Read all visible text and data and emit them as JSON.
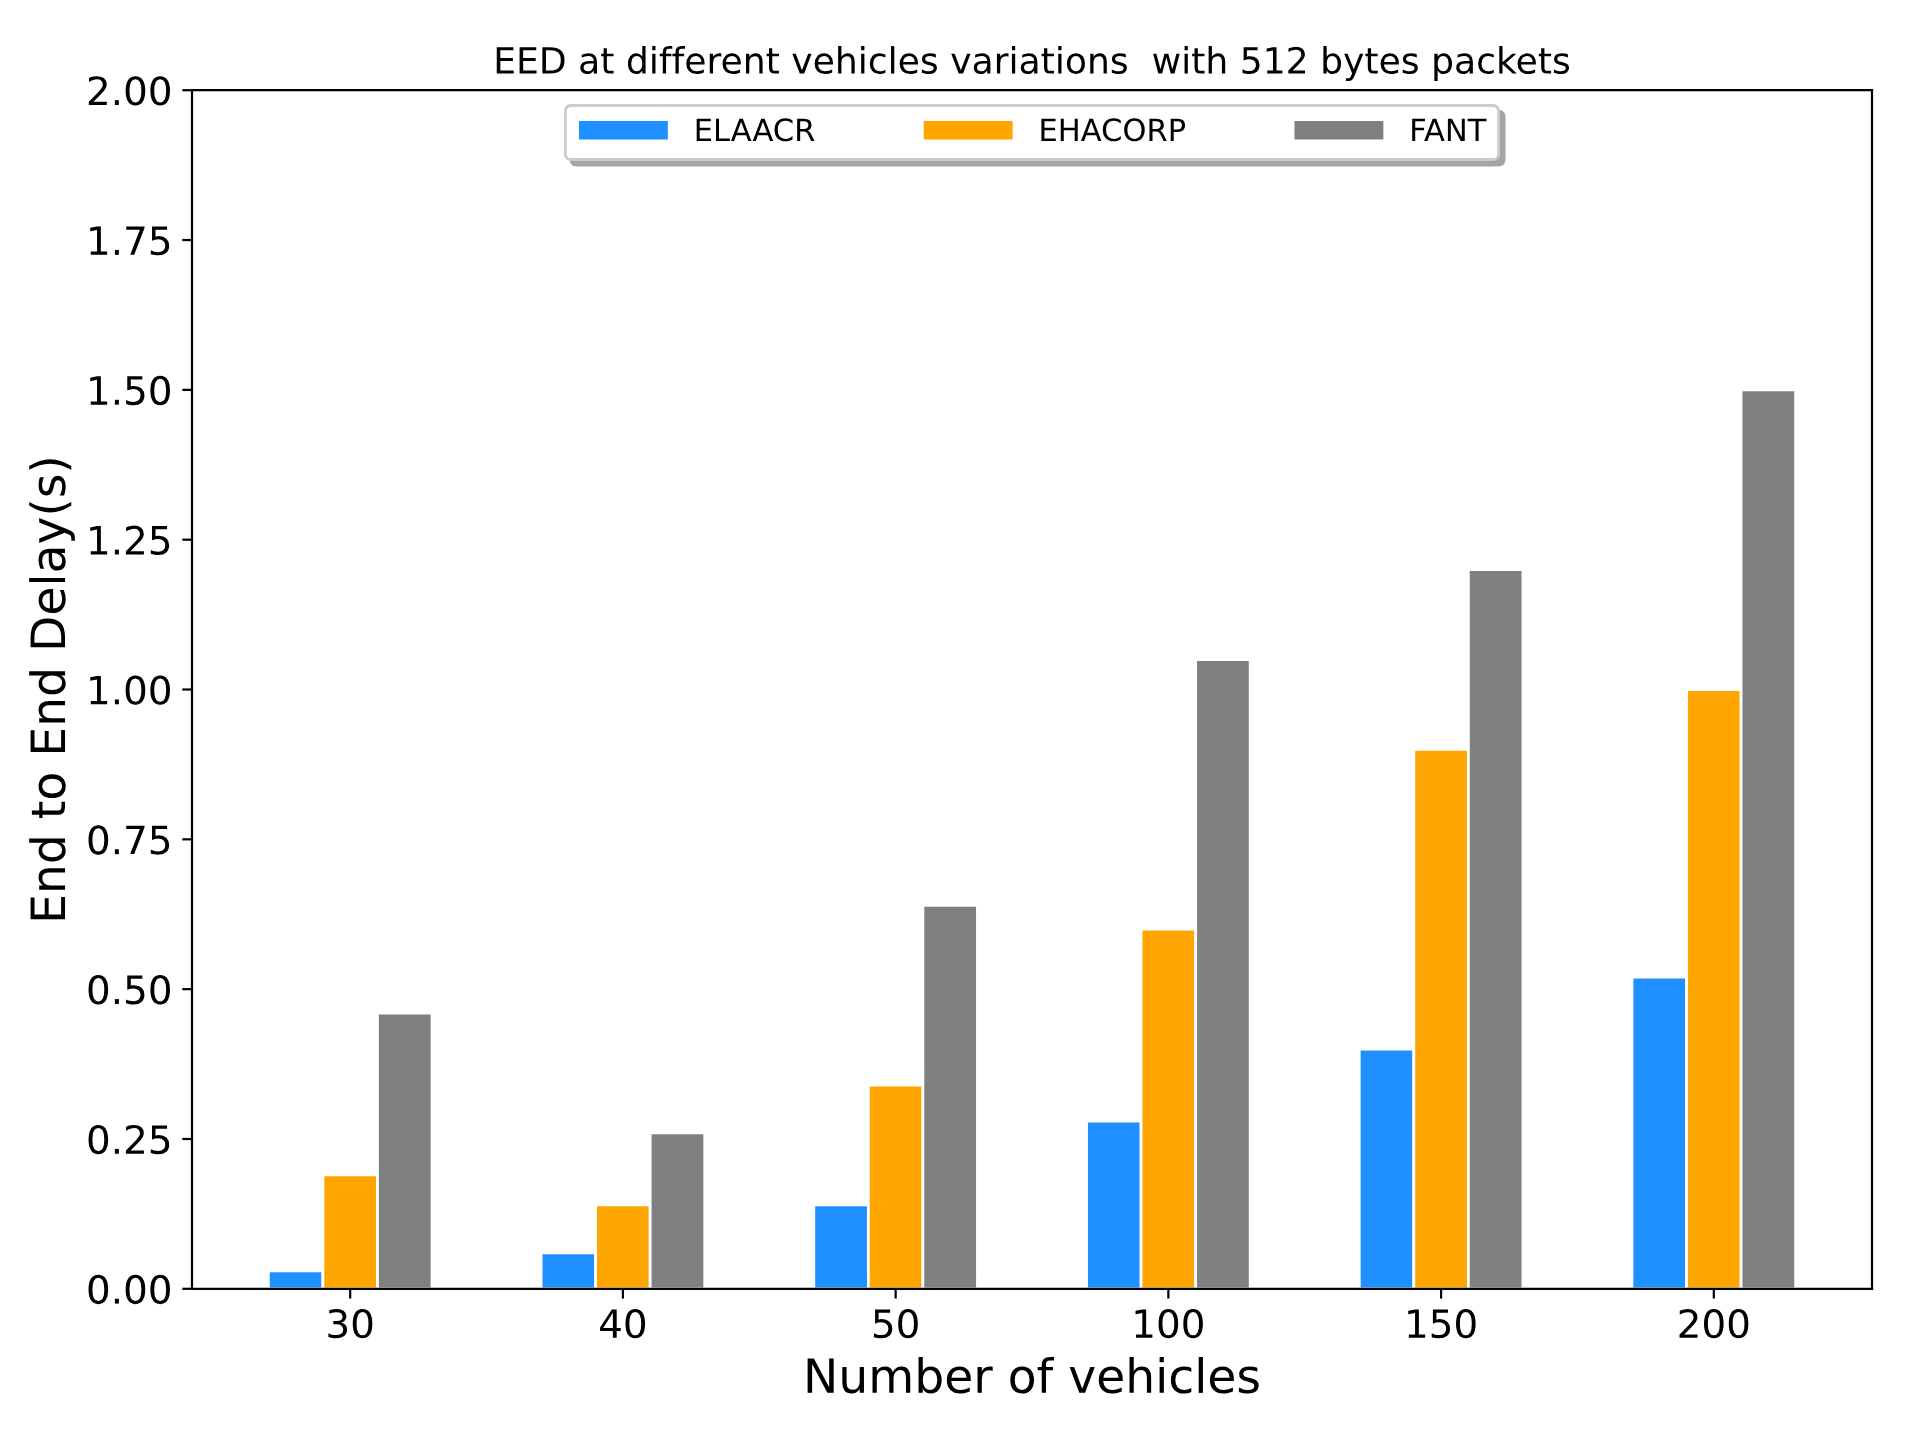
{
  "chart_data": {
    "type": "bar",
    "title": "EED at different vehicles variations  with 512 bytes packets",
    "xlabel": "Number of vehicles",
    "ylabel": "End to End Delay(s)",
    "categories": [
      "30",
      "40",
      "50",
      "100",
      "150",
      "200"
    ],
    "series": [
      {
        "name": "ELAACR",
        "color": "#1e90ff",
        "values": [
          0.03,
          0.06,
          0.14,
          0.28,
          0.4,
          0.52
        ]
      },
      {
        "name": "EHACORP",
        "color": "#ffa500",
        "values": [
          0.19,
          0.14,
          0.34,
          0.6,
          0.9,
          1.0
        ]
      },
      {
        "name": "FANT",
        "color": "#808080",
        "values": [
          0.46,
          0.26,
          0.64,
          1.05,
          1.2,
          1.5
        ]
      }
    ],
    "ylim": [
      0,
      2.0
    ],
    "yticks": [
      {
        "value": 0,
        "label": "0.00"
      },
      {
        "value": 0.25,
        "label": "0.25"
      },
      {
        "value": 0.5,
        "label": "0.50"
      },
      {
        "value": 0.75,
        "label": "0.75"
      },
      {
        "value": 1.0,
        "label": "1.00"
      },
      {
        "value": 1.25,
        "label": "1.25"
      },
      {
        "value": 1.5,
        "label": "1.50"
      },
      {
        "value": 1.75,
        "label": "1.75"
      },
      {
        "value": 2.0,
        "label": "2.00"
      }
    ],
    "grid": false,
    "legend": "top"
  }
}
